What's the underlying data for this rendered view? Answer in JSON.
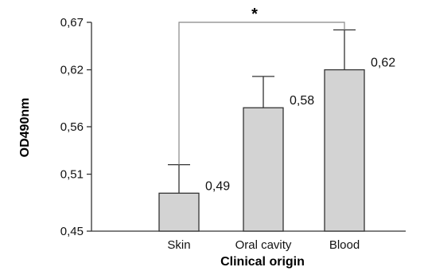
{
  "chart_data": {
    "type": "bar",
    "categories": [
      "Skin",
      "Oral cavity",
      "Blood"
    ],
    "values": [
      0.49,
      0.58,
      0.62
    ],
    "error_upper": [
      0.52,
      0.613,
      0.662
    ],
    "value_labels": [
      "0,49",
      "0,58",
      "0,62"
    ],
    "xlabel": "Clinical origin",
    "ylabel": "OD490nm",
    "ylim": [
      0.45,
      0.67
    ],
    "yticks": [
      0.45,
      0.51,
      0.56,
      0.62,
      0.67
    ],
    "ytick_labels": [
      "0,45",
      "0,51",
      "0,56",
      "0,62",
      "0,67"
    ],
    "significance": {
      "from": "Skin",
      "to": "Blood",
      "label": "*"
    },
    "grid": false,
    "colors": {
      "bar_fill": "#d3d3d3",
      "bar_stroke": "#333333",
      "axis": "#333333"
    }
  }
}
